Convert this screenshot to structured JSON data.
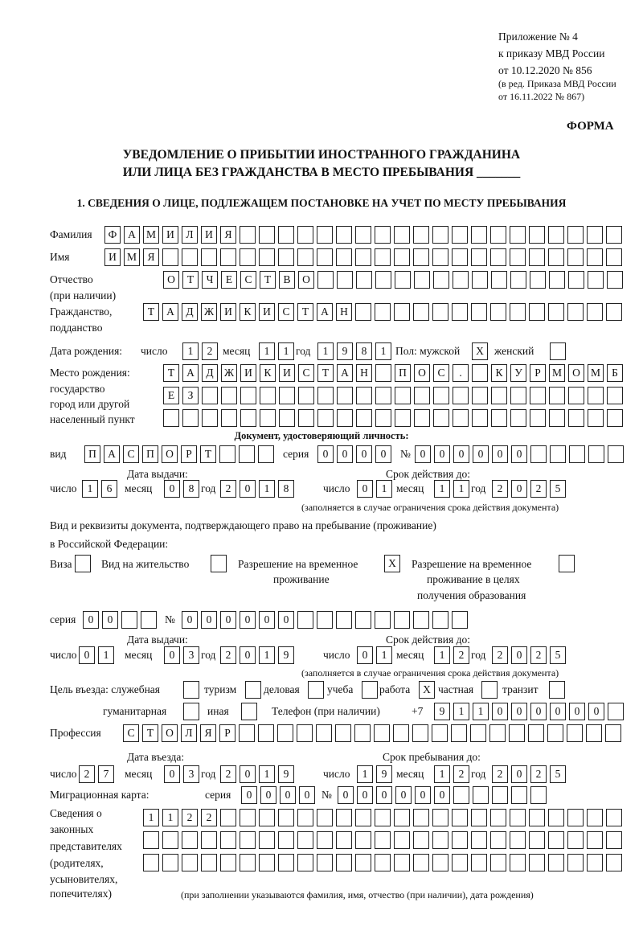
{
  "header": {
    "appendix": "Приложение № 4",
    "order": "к приказу МВД России",
    "order_date": "от 10.12.2020 № 856",
    "edition1": "(в ред. Приказа МВД России",
    "edition2": "от 16.11.2022 № 867)",
    "form_label": "ФОРМА",
    "title1": "УВЕДОМЛЕНИЕ О ПРИБЫТИИ ИНОСТРАННОГО ГРАЖДАНИНА",
    "title2": "ИЛИ ЛИЦА БЕЗ ГРАЖДАНСТВА В МЕСТО ПРЕБЫВАНИЯ _______"
  },
  "section1": {
    "heading": "1. СВЕДЕНИЯ О ЛИЦЕ, ПОДЛЕЖАЩЕМ ПОСТАНОВКЕ НА УЧЕТ ПО МЕСТУ ПРЕБЫВАНИЯ"
  },
  "labels": {
    "surname": "Фамилия",
    "name": "Имя",
    "patronymic1": "Отчество",
    "patronymic2": "(при наличии)",
    "citizenship1": "Гражданство,",
    "citizenship2": "подданство",
    "birth_date": "Дата рождения:",
    "day": "число",
    "month": "месяц",
    "year": "год",
    "sex": "Пол: мужской",
    "female": "женский",
    "birthplace1": "Место рождения:",
    "birthplace2": "государство",
    "birthplace3": "город или другой",
    "birthplace4": "населенный пункт",
    "id_doc": "Документ, удостоверяющий личность:",
    "doc_type": "вид",
    "series": "серия",
    "number": "№",
    "issue_date": "Дата выдачи:",
    "valid_until": "Срок действия до:",
    "validity_note": "(заполняется в случае ограничения срока действия документа)",
    "rights_doc1": "Вид и реквизиты документа, подтверждающего право на пребывание (проживание)",
    "rights_doc2": "в Российской Федерации:",
    "visa": "Виза",
    "residence": "Вид на жительство",
    "temp_permit1": "Разрешение на временное",
    "temp_permit2": "проживание",
    "edu_permit1": "Разрешение на временное",
    "edu_permit2": "проживание в целях",
    "edu_permit3": "получения образования",
    "purpose": "Цель въезда: служебная",
    "tourism": "туризм",
    "business": "деловая",
    "study": "учеба",
    "work": "работа",
    "private": "частная",
    "transit": "транзит",
    "humanitarian": "гуманитарная",
    "other": "иная",
    "phone": "Телефон (при наличии)",
    "phone_prefix": "+7",
    "profession": "Профессия",
    "entry_date": "Дата въезда:",
    "stay_until": "Срок пребывания до:",
    "migration_card": "Миграционная карта:",
    "reps1": "Сведения о",
    "reps2": "законных",
    "reps3": "представителях",
    "reps4": "(родителях,",
    "reps5": "усыновителях,",
    "reps6": "попечителях)",
    "reps_note": "(при заполнении указываются фамилия, имя, отчество (при наличии), дата рождения)"
  },
  "values": {
    "surname": "ФАМИЛИЯ",
    "name": "ИМЯ",
    "patronymic": "ОТЧЕСТВО",
    "citizenship": "ТАДЖИКИСТАН",
    "birth_day": "12",
    "birth_month": "11",
    "birth_year": "1981",
    "sex_male": "X",
    "sex_female": "",
    "birthplace_1": "ТАДЖИКИСТАН ПОС. КУРМОМБ",
    "birthplace_2": "ЕЗ",
    "birthplace_3": "",
    "doc_type": "ПАСПОРТ",
    "doc_series": "0000",
    "doc_number": "000000",
    "doc_issue_day": "16",
    "doc_issue_month": "08",
    "doc_issue_year": "2018",
    "doc_valid_day": "01",
    "doc_valid_month": "11",
    "doc_valid_year": "2025",
    "right_visa": "",
    "right_residence": "",
    "right_temp": "X",
    "right_edu": "",
    "right_series": "00",
    "right_number": "000000",
    "right_issue_day": "01",
    "right_issue_month": "03",
    "right_issue_year": "2019",
    "right_valid_day": "01",
    "right_valid_month": "12",
    "right_valid_year": "2025",
    "purpose_service": "",
    "purpose_tourism": "",
    "purpose_business": "",
    "purpose_study": "",
    "purpose_work": "X",
    "purpose_private": "",
    "purpose_transit": "",
    "purpose_humanitarian": "",
    "purpose_other": "",
    "phone": "911000000",
    "profession": "СТОЛЯР",
    "entry_day": "27",
    "entry_month": "03",
    "entry_year": "2019",
    "stay_day": "19",
    "stay_month": "12",
    "stay_year": "2025",
    "mig_series": "0000",
    "mig_number": "000000",
    "reps_1": "1122",
    "reps_2": "",
    "reps_3": ""
  }
}
